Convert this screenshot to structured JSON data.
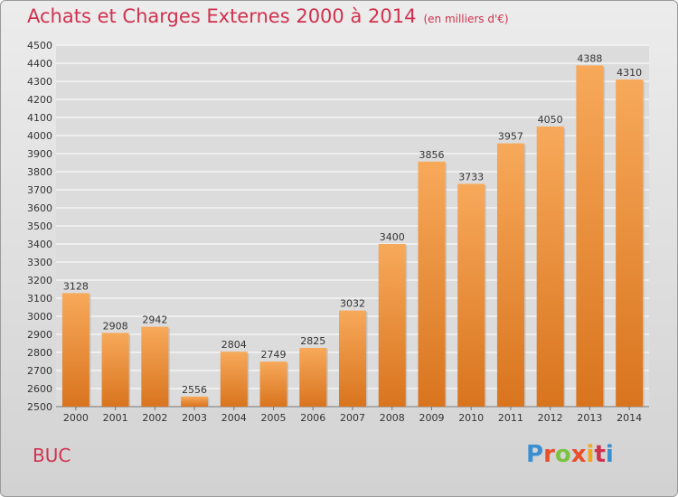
{
  "header": {
    "title": "Achats et Charges Externes 2000 à 2014",
    "unit": "(en milliers d'€)"
  },
  "footer": {
    "place": "BUC",
    "logo": [
      "P",
      "r",
      "o",
      "x",
      "i",
      "t",
      "i"
    ],
    "logo_colors": [
      "#3a8fd0",
      "#e84f2a",
      "#7cc242",
      "#e84f2a",
      "#f3a71b",
      "#d0324e",
      "#3a8fd0"
    ]
  },
  "colors": {
    "bar_light": "#f7a95a",
    "bar_dark": "#d9741e",
    "text": "#333333",
    "grid": "#ffffff",
    "accent": "#d0324e"
  },
  "chart_data": {
    "type": "bar",
    "title": "Achats et Charges Externes 2000 à 2014",
    "xlabel": "",
    "ylabel": "",
    "categories": [
      "2000",
      "2001",
      "2002",
      "2003",
      "2004",
      "2005",
      "2006",
      "2007",
      "2008",
      "2009",
      "2010",
      "2011",
      "2012",
      "2013",
      "2014"
    ],
    "values": [
      3128,
      2908,
      2942,
      2556,
      2804,
      2749,
      2825,
      3032,
      3400,
      3856,
      3733,
      3957,
      4050,
      4388,
      4310
    ],
    "ylim": [
      2500,
      4500
    ],
    "ytick_step": 100,
    "grid": true
  }
}
